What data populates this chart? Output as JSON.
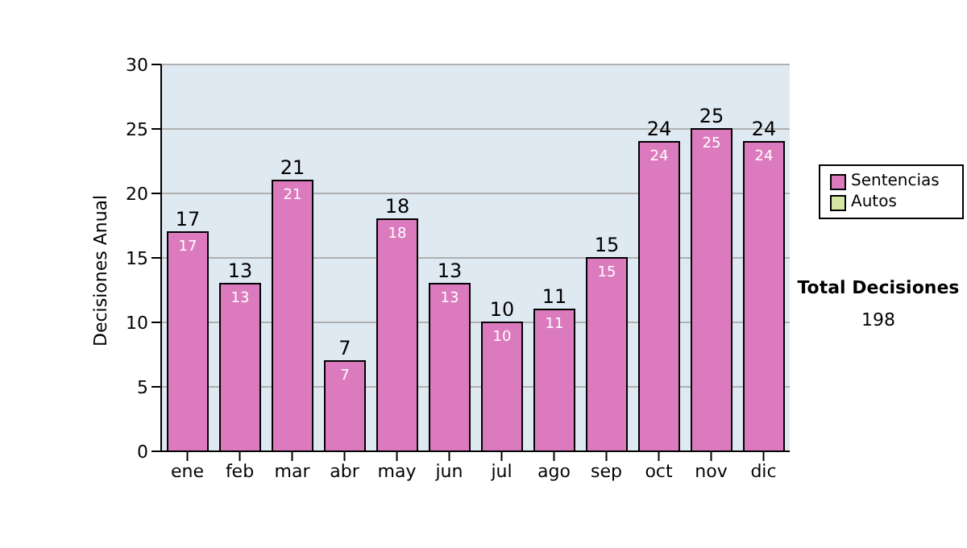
{
  "chart_data": {
    "type": "bar",
    "ylabel": "Decisiones Anual",
    "categories": [
      "ene",
      "feb",
      "mar",
      "abr",
      "may",
      "jun",
      "jul",
      "ago",
      "sep",
      "oct",
      "nov",
      "dic"
    ],
    "series": [
      {
        "name": "Sentencias",
        "color": "#dc7abe",
        "values": [
          17,
          13,
          21,
          7,
          18,
          13,
          10,
          11,
          15,
          24,
          25,
          24
        ],
        "value_labels": [
          "17",
          "13",
          "21",
          "7",
          "18",
          "13",
          "10",
          "11",
          "15",
          "24",
          "25",
          "24"
        ]
      },
      {
        "name": "Autos",
        "color": "#d4e8a4",
        "values": [
          0,
          0,
          0,
          0,
          0,
          0,
          0,
          0,
          0,
          0,
          0,
          0
        ]
      }
    ],
    "stacked": true,
    "totals": [
      "17",
      "13",
      "21",
      "7",
      "18",
      "13",
      "10",
      "11",
      "15",
      "24",
      "25",
      "24"
    ],
    "ylim": [
      0,
      30
    ],
    "yticks": [
      0,
      5,
      10,
      15,
      20,
      25,
      30
    ],
    "grid": "y",
    "legend": "right",
    "annotations": [
      "Total Decisiones",
      "198"
    ]
  }
}
